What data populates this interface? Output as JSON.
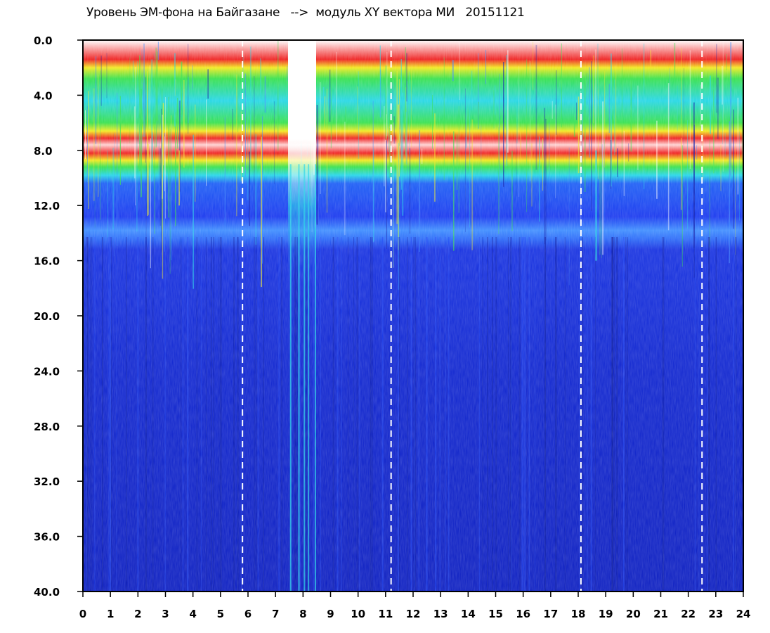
{
  "chart_data": {
    "type": "heatmap",
    "title": "Уровень ЭМ-фона на Байгазане   -->  модуль XY вектора МИ   20151121",
    "x_ticks": [
      "0",
      "1",
      "2",
      "3",
      "4",
      "5",
      "6",
      "7",
      "8",
      "9",
      "10",
      "11",
      "12",
      "13",
      "14",
      "15",
      "16",
      "17",
      "18",
      "19",
      "20",
      "21",
      "22",
      "23",
      "24"
    ],
    "y_ticks": [
      "0.0",
      "4.0",
      "8.0",
      "12.0",
      "16.0",
      "20.0",
      "24.0",
      "28.0",
      "32.0",
      "36.0",
      "40.0"
    ],
    "xlim": [
      0,
      24
    ],
    "ylim": [
      0,
      40
    ],
    "y_inverted": true,
    "dashed_markers_x": [
      5.8,
      11.2,
      18.1,
      22.5
    ],
    "colors": {
      "deep_blue": "#0a1fc8",
      "blue": "#1a3cf0",
      "cyan": "#22d6e6",
      "green": "#34e04a",
      "yellow": "#f2ea1c",
      "red": "#ee1c1c",
      "white": "#ffffff"
    }
  }
}
